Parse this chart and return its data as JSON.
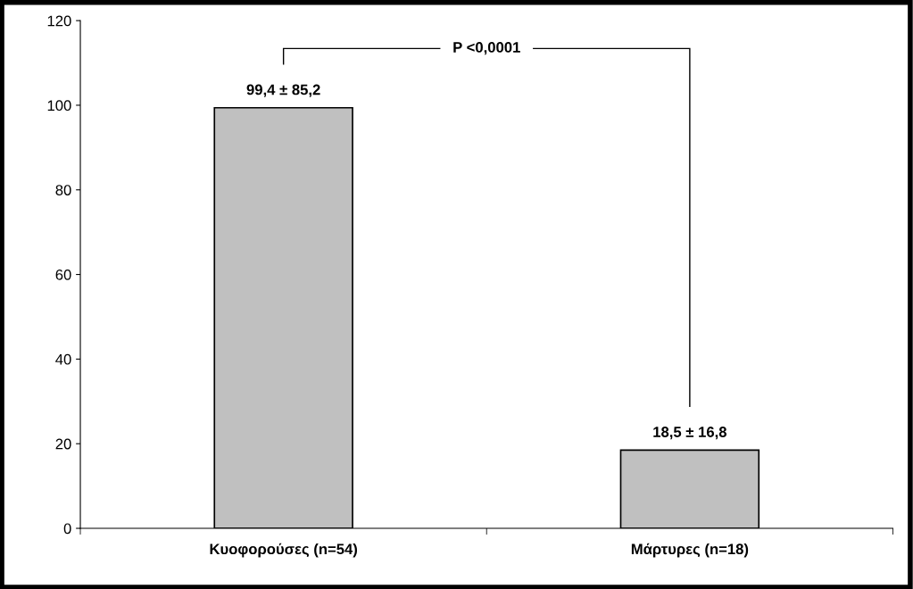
{
  "chart_data": {
    "type": "bar",
    "categories": [
      "Κυοφορούσες (n=54)",
      "Μάρτυρες (n=18)"
    ],
    "values": [
      99.4,
      18.5
    ],
    "color": "#c0c0c0",
    "value_labels": [
      "99,4 ± 85,2",
      "18,5 ± 16,8"
    ],
    "ylim": [
      0,
      120
    ],
    "yticks": [
      0,
      20,
      40,
      60,
      80,
      100,
      120
    ],
    "grid": false,
    "legend": false,
    "annotations": [
      "P <0,0001"
    ]
  }
}
